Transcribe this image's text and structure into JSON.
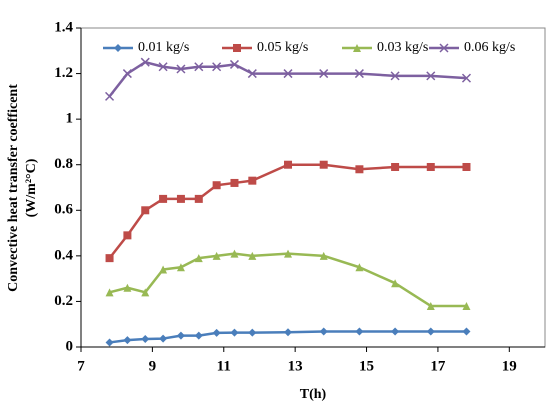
{
  "chart_data": {
    "type": "line",
    "xlabel": "T(h)",
    "ylabel": [
      "Convective heat  transfer coefficent",
      "(W/m²°C)"
    ],
    "x": [
      7.8,
      8.3,
      8.8,
      9.3,
      9.8,
      10.3,
      10.8,
      11.3,
      11.8,
      12.8,
      13.8,
      14.8,
      15.8,
      16.8,
      17.8
    ],
    "series": [
      {
        "name": "0.01 kg/s",
        "color": "#4a7ebb",
        "marker": "diamond",
        "values": [
          0.02,
          0.03,
          0.035,
          0.037,
          0.05,
          0.05,
          0.062,
          0.063,
          0.063,
          0.065,
          0.068,
          0.068,
          0.068,
          0.068,
          0.068
        ]
      },
      {
        "name": "0.05 kg/s",
        "color": "#be4b48",
        "marker": "square",
        "values": [
          0.39,
          0.49,
          0.6,
          0.65,
          0.65,
          0.65,
          0.71,
          0.72,
          0.73,
          0.8,
          0.8,
          0.78,
          0.79,
          0.79,
          0.79
        ]
      },
      {
        "name": "0.03 kg/s",
        "color": "#98b954",
        "marker": "triangle",
        "values": [
          0.24,
          0.26,
          0.24,
          0.34,
          0.35,
          0.39,
          0.4,
          0.41,
          0.4,
          0.41,
          0.4,
          0.35,
          0.28,
          0.18,
          0.18
        ]
      },
      {
        "name": "0.06 kg/s",
        "color": "#7d60a0",
        "marker": "x",
        "values": [
          1.1,
          1.2,
          1.25,
          1.23,
          1.22,
          1.23,
          1.23,
          1.24,
          1.2,
          1.2,
          1.2,
          1.2,
          1.19,
          1.19,
          1.18
        ]
      }
    ],
    "xlim": [
      7,
      20
    ],
    "xticks": [
      7,
      9,
      11,
      13,
      15,
      17,
      19
    ],
    "ylim": [
      0,
      1.4
    ],
    "yticks": [
      0,
      0.2,
      0.4,
      0.6,
      0.8,
      1,
      1.2,
      1.4
    ],
    "grid": false,
    "legend": "top"
  }
}
